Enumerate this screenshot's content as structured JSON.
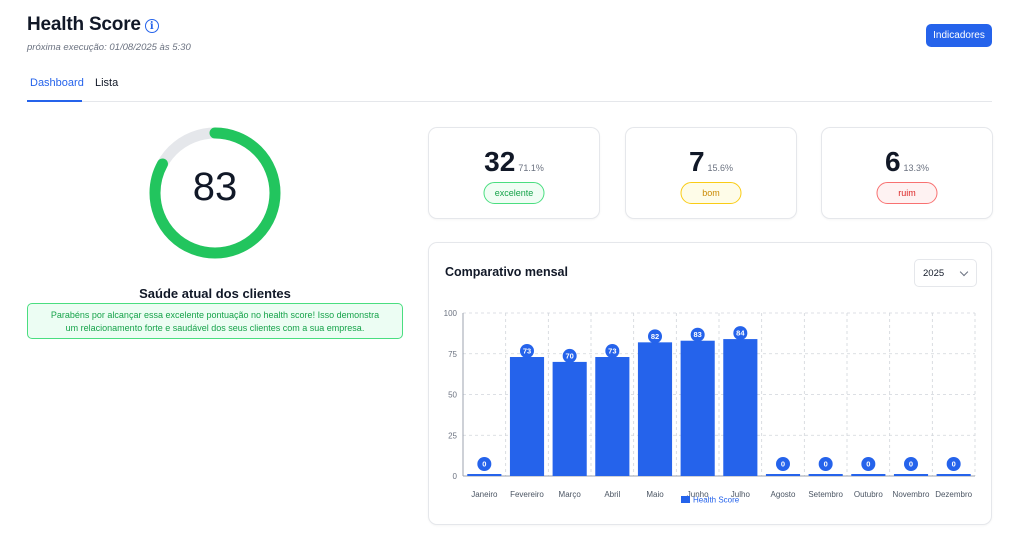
{
  "header": {
    "title": "Health Score",
    "info_icon": "info-icon",
    "next_run": "próxima execução: 01/08/2025 às 5:30",
    "indicators_button": "Indicadores"
  },
  "tabs": [
    {
      "label": "Dashboard",
      "active": true
    },
    {
      "label": "Lista",
      "active": false
    }
  ],
  "gauge": {
    "value": "83",
    "fraction": 0.83,
    "color": "#22c55e",
    "track_color": "#e5e7eb",
    "label": "Saúde atual dos clientes",
    "message": "Parabéns por alcançar essa excelente pontuação no health score! Isso demonstra um relacionamento forte e saudável dos seus clientes com a sua empresa."
  },
  "stats": [
    {
      "count": "32",
      "pct": "71.1%",
      "label": "excelente",
      "color": "#16a34a"
    },
    {
      "count": "7",
      "pct": "15.6%",
      "label": "bom",
      "color": "#ca8a04"
    },
    {
      "count": "6",
      "pct": "13.3%",
      "label": "ruim",
      "color": "#dc2626"
    }
  ],
  "chart": {
    "title": "Comparativo mensal",
    "year": "2025"
  },
  "chart_data": {
    "type": "bar",
    "categories": [
      "Janeiro",
      "Fevereiro",
      "Março",
      "Abril",
      "Maio",
      "Junho",
      "Julho",
      "Agosto",
      "Setembro",
      "Outubro",
      "Novembro",
      "Dezembro"
    ],
    "series": [
      {
        "name": "Health Score",
        "values": [
          0,
          73,
          70,
          73,
          82,
          83,
          84,
          0,
          0,
          0,
          0,
          0
        ],
        "color": "#2563eb"
      }
    ],
    "ylim": [
      0,
      100
    ],
    "yticks": [
      0,
      25,
      50,
      75,
      100
    ],
    "grid": true,
    "legend": "bottom",
    "data_labels": true
  }
}
